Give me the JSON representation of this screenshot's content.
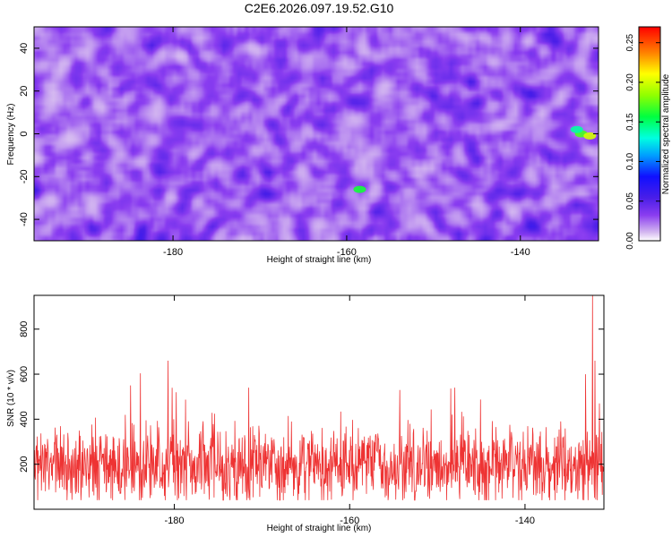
{
  "figure": {
    "title": "C2E6.2026.097.19.52.G10"
  },
  "chart_data": [
    {
      "type": "heatmap",
      "title": "C2E6.2026.097.19.52.G10",
      "xlabel": "Height of straight line (km)",
      "ylabel": "Frequency (Hz)",
      "xlim": [
        -196,
        -131
      ],
      "ylim": [
        -50,
        50
      ],
      "x_ticks": [
        -180,
        -160,
        -140
      ],
      "y_ticks": [
        -40,
        -20,
        0,
        20,
        40
      ],
      "colorbar": {
        "label": "Normalized spectral amplitude",
        "range": [
          0,
          0.27
        ],
        "ticks": [
          0,
          0.05,
          0.1,
          0.15,
          0.2,
          0.25
        ],
        "tick_labels": [
          "0.00",
          "0.05",
          "0.10",
          "0.15",
          "0.20",
          "0.25"
        ]
      },
      "typical_amplitude": [
        0.01,
        0.05
      ],
      "peaks": [
        {
          "x": -158.5,
          "y": -26,
          "value": 0.16
        },
        {
          "x": -133,
          "y": 0,
          "value": 0.17
        },
        {
          "x": -132,
          "y": -1,
          "value": 0.2
        },
        {
          "x": -133.5,
          "y": 2,
          "value": 0.14
        }
      ]
    },
    {
      "type": "line",
      "xlabel": "Height of straight line (km)",
      "ylabel": "SNR (10 * v/v)",
      "xlim": [
        -196,
        -131
      ],
      "ylim": [
        0,
        950
      ],
      "x_ticks": [
        -180,
        -160,
        -140
      ],
      "y_ticks": [
        200,
        400,
        600,
        800
      ],
      "color": "#ee3333",
      "baseline_mean": 190,
      "noise_spread": 85,
      "peaks": [
        {
          "x": -180.7,
          "y": 660
        },
        {
          "x": -179.8,
          "y": 520
        },
        {
          "x": -185,
          "y": 550
        },
        {
          "x": -171.5,
          "y": 540
        },
        {
          "x": -154.3,
          "y": 530
        },
        {
          "x": -148,
          "y": 540
        },
        {
          "x": -132.3,
          "y": 950
        },
        {
          "x": -132.0,
          "y": 660
        },
        {
          "x": -133.1,
          "y": 600
        },
        {
          "x": -131.5,
          "y": 470
        }
      ]
    }
  ]
}
